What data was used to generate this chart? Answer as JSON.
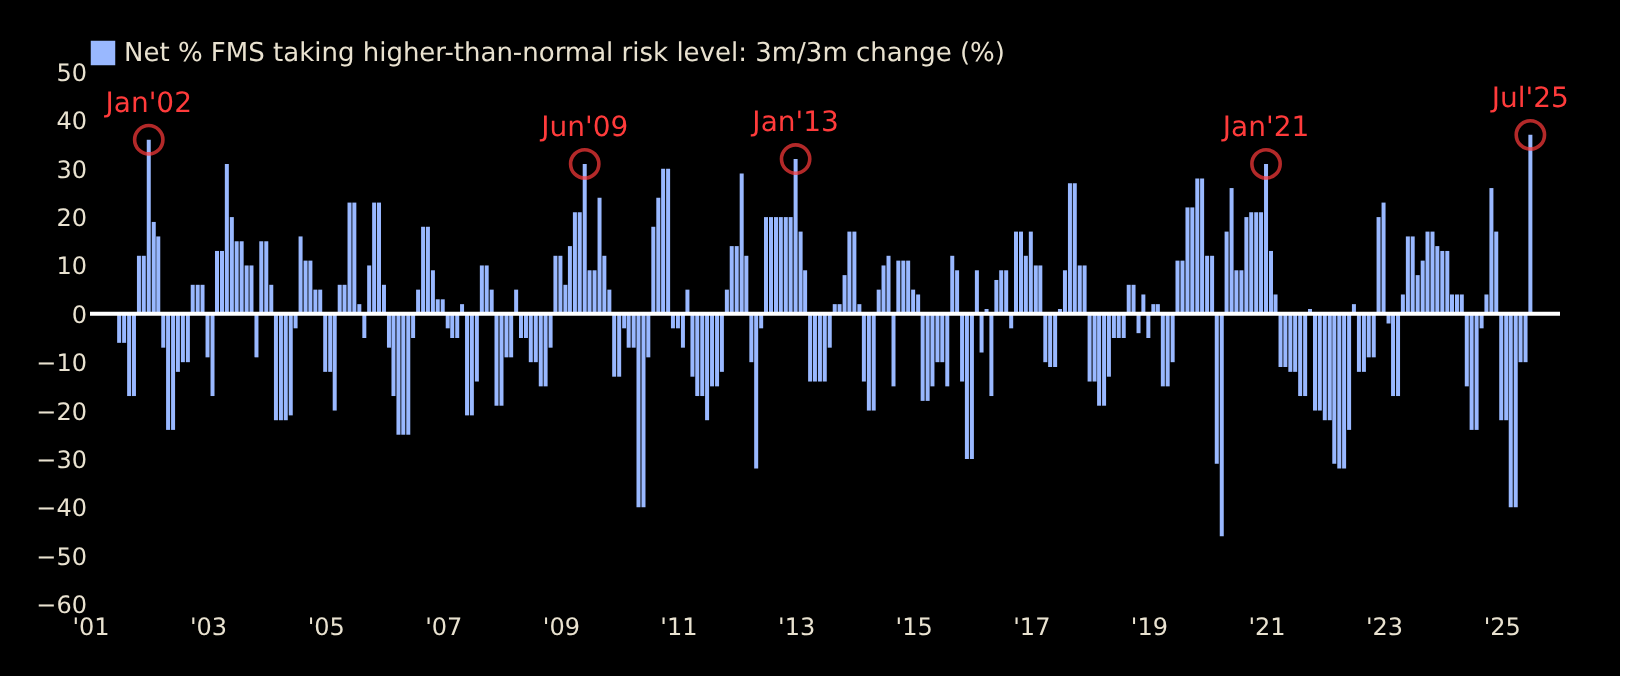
{
  "chart_data": {
    "type": "bar",
    "x": [
      "2001-07",
      "2001-08",
      "2001-09",
      "2001-10",
      "2001-11",
      "2001-12",
      "2002-01",
      "2002-02",
      "2002-03",
      "2002-04",
      "2002-05",
      "2002-06",
      "2002-07",
      "2002-08",
      "2002-09",
      "2002-10",
      "2002-11",
      "2002-12",
      "2003-01",
      "2003-02",
      "2003-03",
      "2003-04",
      "2003-05",
      "2003-06",
      "2003-07",
      "2003-08",
      "2003-09",
      "2003-10",
      "2003-11",
      "2003-12",
      "2004-01",
      "2004-02",
      "2004-03",
      "2004-04",
      "2004-05",
      "2004-06",
      "2004-07",
      "2004-08",
      "2004-09",
      "2004-10",
      "2004-11",
      "2004-12",
      "2005-01",
      "2005-02",
      "2005-03",
      "2005-04",
      "2005-05",
      "2005-06",
      "2005-07",
      "2005-08",
      "2005-09",
      "2005-10",
      "2005-11",
      "2005-12",
      "2006-01",
      "2006-02",
      "2006-03",
      "2006-04",
      "2006-05",
      "2006-06",
      "2006-07",
      "2006-08",
      "2006-09",
      "2006-10",
      "2006-11",
      "2006-12",
      "2007-01",
      "2007-02",
      "2007-03",
      "2007-04",
      "2007-05",
      "2007-06",
      "2007-07",
      "2007-08",
      "2007-09",
      "2007-10",
      "2007-11",
      "2007-12",
      "2008-01",
      "2008-02",
      "2008-03",
      "2008-04",
      "2008-05",
      "2008-06",
      "2008-07",
      "2008-08",
      "2008-09",
      "2008-10",
      "2008-11",
      "2008-12",
      "2009-01",
      "2009-02",
      "2009-03",
      "2009-04",
      "2009-05",
      "2009-06",
      "2009-07",
      "2009-08",
      "2009-09",
      "2009-10",
      "2009-11",
      "2009-12",
      "2010-01",
      "2010-02",
      "2010-03",
      "2010-04",
      "2010-05",
      "2010-06",
      "2010-07",
      "2010-08",
      "2010-09",
      "2010-10",
      "2010-11",
      "2010-12",
      "2011-01",
      "2011-02",
      "2011-03",
      "2011-04",
      "2011-05",
      "2011-06",
      "2011-07",
      "2011-08",
      "2011-09",
      "2011-10",
      "2011-11",
      "2011-12",
      "2012-01",
      "2012-02",
      "2012-03",
      "2012-04",
      "2012-05",
      "2012-06",
      "2012-07",
      "2012-08",
      "2012-09",
      "2012-10",
      "2012-11",
      "2012-12",
      "2013-01",
      "2013-02",
      "2013-03",
      "2013-04",
      "2013-05",
      "2013-06",
      "2013-07",
      "2013-08",
      "2013-09",
      "2013-10",
      "2013-11",
      "2013-12",
      "2014-01",
      "2014-02",
      "2014-03",
      "2014-04",
      "2014-05",
      "2014-06",
      "2014-07",
      "2014-08",
      "2014-09",
      "2014-10",
      "2014-11",
      "2014-12",
      "2015-01",
      "2015-02",
      "2015-03",
      "2015-04",
      "2015-05",
      "2015-06",
      "2015-07",
      "2015-08",
      "2015-09",
      "2015-10",
      "2015-11",
      "2015-12",
      "2016-01",
      "2016-02",
      "2016-03",
      "2016-04",
      "2016-05",
      "2016-06",
      "2016-07",
      "2016-08",
      "2016-09",
      "2016-10",
      "2016-11",
      "2016-12",
      "2017-01",
      "2017-02",
      "2017-03",
      "2017-04",
      "2017-05",
      "2017-06",
      "2017-07",
      "2017-08",
      "2017-09",
      "2017-10",
      "2017-11",
      "2017-12",
      "2018-01",
      "2018-02",
      "2018-03",
      "2018-04",
      "2018-05",
      "2018-06",
      "2018-07",
      "2018-08",
      "2018-09",
      "2018-10",
      "2018-11",
      "2018-12",
      "2019-01",
      "2019-02",
      "2019-03",
      "2019-04",
      "2019-05",
      "2019-06",
      "2019-07",
      "2019-08",
      "2019-09",
      "2019-10",
      "2019-11",
      "2019-12",
      "2020-01",
      "2020-02",
      "2020-03",
      "2020-04",
      "2020-05",
      "2020-06",
      "2020-07",
      "2020-08",
      "2020-09",
      "2020-10",
      "2020-11",
      "2020-12",
      "2021-01",
      "2021-02",
      "2021-03",
      "2021-04",
      "2021-05",
      "2021-06",
      "2021-07",
      "2021-08",
      "2021-09",
      "2021-10",
      "2021-11",
      "2021-12",
      "2022-01",
      "2022-02",
      "2022-03",
      "2022-04",
      "2022-05",
      "2022-06",
      "2022-07",
      "2022-08",
      "2022-09",
      "2022-10",
      "2022-11",
      "2022-12",
      "2023-01",
      "2023-02",
      "2023-03",
      "2023-04",
      "2023-05",
      "2023-06",
      "2023-07",
      "2023-08",
      "2023-09",
      "2023-10",
      "2023-11",
      "2023-12",
      "2024-01",
      "2024-02",
      "2024-03",
      "2024-04",
      "2024-05",
      "2024-06",
      "2024-07",
      "2024-08",
      "2024-09",
      "2024-10",
      "2024-11",
      "2024-12",
      "2025-01",
      "2025-02",
      "2025-03",
      "2025-04",
      "2025-05",
      "2025-06",
      "2025-07"
    ],
    "series": [
      {
        "name": "Net % FMS taking higher-than-normal risk level: 3m/3m change (%)",
        "color": "#99b8ff",
        "values": [
          -6,
          -6,
          -17,
          -17,
          12,
          12,
          36,
          19,
          16,
          -7,
          -24,
          -24,
          -12,
          -10,
          -10,
          6,
          6,
          6,
          -9,
          -17,
          13,
          13,
          31,
          20,
          15,
          15,
          10,
          10,
          -9,
          15,
          15,
          6,
          -22,
          -22,
          -22,
          -21,
          -3,
          16,
          11,
          11,
          5,
          5,
          -12,
          -12,
          -20,
          6,
          6,
          23,
          23,
          2,
          -5,
          10,
          23,
          23,
          6,
          -7,
          -17,
          -25,
          -25,
          -25,
          -5,
          5,
          18,
          18,
          9,
          3,
          3,
          -3,
          -5,
          -5,
          2,
          -21,
          -21,
          -14,
          10,
          10,
          5,
          -19,
          -19,
          -9,
          -9,
          5,
          -5,
          -5,
          -10,
          -10,
          -15,
          -15,
          -7,
          12,
          12,
          6,
          14,
          21,
          21,
          31,
          9,
          9,
          24,
          12,
          5,
          -13,
          -13,
          -3,
          -7,
          -7,
          -40,
          -40,
          -9,
          18,
          24,
          30,
          30,
          -3,
          -3,
          -7,
          5,
          -13,
          -17,
          -17,
          -22,
          -15,
          -15,
          -12,
          5,
          14,
          14,
          29,
          12,
          -10,
          -32,
          -3,
          20,
          20,
          20,
          20,
          20,
          20,
          32,
          17,
          9,
          -14,
          -14,
          -14,
          -14,
          -7,
          2,
          2,
          8,
          17,
          17,
          2,
          -14,
          -20,
          -20,
          5,
          10,
          12,
          -15,
          11,
          11,
          11,
          5,
          4,
          -18,
          -18,
          -15,
          -10,
          -10,
          -15,
          12,
          9,
          -14,
          -30,
          -30,
          9,
          -8,
          1,
          -17,
          7,
          9,
          9,
          -3,
          17,
          17,
          12,
          17,
          10,
          10,
          -10,
          -11,
          -11,
          1,
          9,
          27,
          27,
          10,
          10,
          -14,
          -14,
          -19,
          -19,
          -13,
          -5,
          -5,
          -5,
          6,
          6,
          -4,
          4,
          -5,
          2,
          2,
          -15,
          -15,
          -10,
          11,
          11,
          22,
          22,
          28,
          28,
          12,
          12,
          -31,
          -46,
          17,
          26,
          9,
          9,
          20,
          21,
          21,
          21,
          31,
          13,
          4,
          -11,
          -11,
          -12,
          -12,
          -17,
          -17,
          1,
          -20,
          -20,
          -22,
          -22,
          -31,
          -32,
          -32,
          -24,
          2,
          -12,
          -12,
          -9,
          -9,
          20,
          23,
          -2,
          -17,
          -17,
          4,
          16,
          16,
          8,
          11,
          17,
          17,
          14,
          13,
          13,
          4,
          4,
          4,
          -15,
          -24,
          -24,
          -3,
          4,
          26,
          17,
          -22,
          -22,
          -40,
          -40,
          -10,
          -10,
          37
        ]
      }
    ],
    "xlim": [
      "2001-01",
      "2026-01"
    ],
    "xticks": [
      {
        "value": "2001-01",
        "label": "'01"
      },
      {
        "value": "2003-01",
        "label": "'03"
      },
      {
        "value": "2005-01",
        "label": "'05"
      },
      {
        "value": "2007-01",
        "label": "'07"
      },
      {
        "value": "2009-01",
        "label": "'09"
      },
      {
        "value": "2011-01",
        "label": "'11"
      },
      {
        "value": "2013-01",
        "label": "'13"
      },
      {
        "value": "2015-01",
        "label": "'15"
      },
      {
        "value": "2017-01",
        "label": "'17"
      },
      {
        "value": "2019-01",
        "label": "'19"
      },
      {
        "value": "2021-01",
        "label": "'21"
      },
      {
        "value": "2023-01",
        "label": "'23"
      },
      {
        "value": "2025-01",
        "label": "'25"
      }
    ],
    "ylim": [
      -60,
      50
    ],
    "yticks": [
      -60,
      -50,
      -40,
      -30,
      -20,
      -10,
      0,
      10,
      20,
      30,
      40,
      50
    ],
    "ref_lines": [
      {
        "axis": "y",
        "value": 0,
        "color": "#ffffff"
      }
    ],
    "annotations": [
      {
        "text": "Jan'02",
        "x": "2002-01",
        "y": 36
      },
      {
        "text": "Jun'09",
        "x": "2009-06",
        "y": 31
      },
      {
        "text": "Jan'13",
        "x": "2013-01",
        "y": 32
      },
      {
        "text": "Jan'21",
        "x": "2021-01",
        "y": 31
      },
      {
        "text": "Jul'25",
        "x": "2025-07",
        "y": 37
      }
    ],
    "legend": "top"
  }
}
